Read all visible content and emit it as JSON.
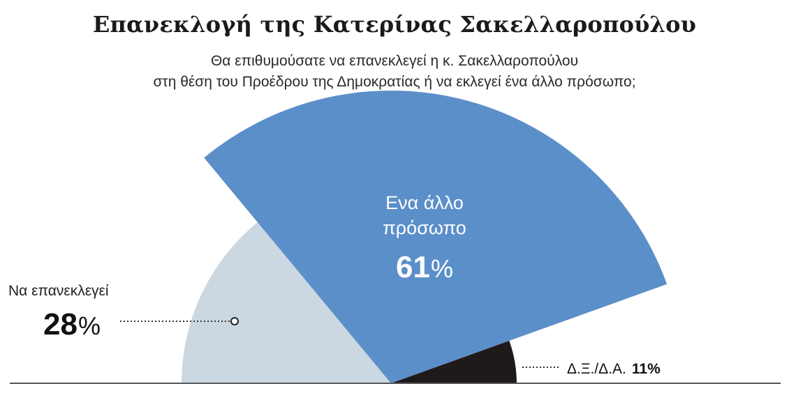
{
  "header": {
    "title": "Επανεκλογή της Κατερίνας Σακελλαροπούλου",
    "subtitle_line1": "Θα επιθυμούσατε να επανεκλεγεί η κ. Σακελλαροπούλου",
    "subtitle_line2": "στη θέση του Προέδρου της Δημοκρατίας ή να εκλεγεί ένα άλλο πρόσωπο;"
  },
  "colors": {
    "reelect": "#cbd8e2",
    "other": "#5b8fc9",
    "dk": "#1f1a1a",
    "baseline": "#555555"
  },
  "chart_data": {
    "type": "pie",
    "layout": "semicircle",
    "title": "Επανεκλογή της Κατερίνας Σακελλαροπούλου",
    "slices": [
      {
        "label": "Να επανεκλεγεί",
        "value": 28,
        "display": "28"
      },
      {
        "label": "Ενα άλλο πρόσωπο",
        "label_line1": "Ενα άλλο",
        "label_line2": "πρόσωπο",
        "value": 61,
        "display": "61"
      },
      {
        "label": "Δ.Ξ./Δ.Α.",
        "value": 11,
        "display": "11%"
      }
    ],
    "unit": "%"
  }
}
